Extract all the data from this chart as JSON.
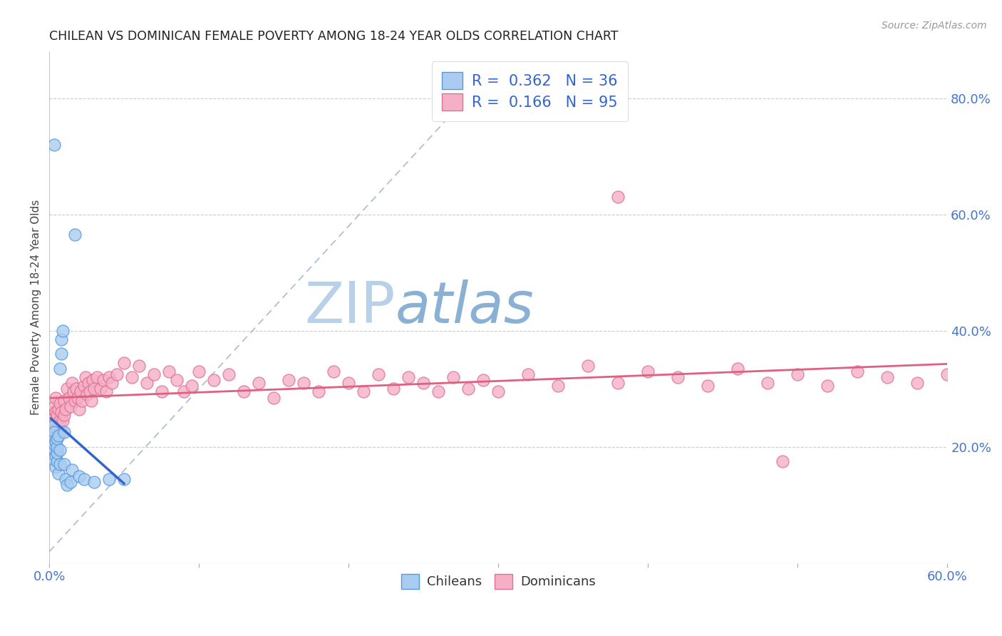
{
  "title": "CHILEAN VS DOMINICAN FEMALE POVERTY AMONG 18-24 YEAR OLDS CORRELATION CHART",
  "source": "Source: ZipAtlas.com",
  "ylabel": "Female Poverty Among 18-24 Year Olds",
  "xlim": [
    0.0,
    0.6
  ],
  "ylim": [
    0.0,
    0.88
  ],
  "xticks": [
    0.0,
    0.1,
    0.2,
    0.3,
    0.4,
    0.5,
    0.6
  ],
  "xticklabels": [
    "0.0%",
    "",
    "",
    "",
    "",
    "",
    "60.0%"
  ],
  "right_yticks": [
    0.2,
    0.4,
    0.6,
    0.8
  ],
  "right_yticklabels": [
    "20.0%",
    "40.0%",
    "60.0%",
    "80.0%"
  ],
  "chile_R": 0.362,
  "chile_N": 36,
  "dom_R": 0.166,
  "dom_N": 95,
  "chile_color": "#aaccf0",
  "chile_edge_color": "#5599dd",
  "dom_color": "#f5b0c8",
  "dom_edge_color": "#e07090",
  "ref_line_color": "#aabbd0",
  "watermark_color": "#ccddef",
  "watermark_zip_color": "#aac8e8",
  "watermark_atlas_color": "#88aad4",
  "chile_x": [
    0.001,
    0.001,
    0.002,
    0.002,
    0.002,
    0.003,
    0.003,
    0.003,
    0.004,
    0.004,
    0.004,
    0.005,
    0.005,
    0.005,
    0.005,
    0.006,
    0.006,
    0.007,
    0.007,
    0.007,
    0.008,
    0.008,
    0.009,
    0.01,
    0.01,
    0.011,
    0.012,
    0.014,
    0.015,
    0.017,
    0.02,
    0.023,
    0.03,
    0.04,
    0.003,
    0.05
  ],
  "chile_y": [
    0.2,
    0.215,
    0.18,
    0.22,
    0.235,
    0.195,
    0.205,
    0.225,
    0.165,
    0.185,
    0.21,
    0.175,
    0.19,
    0.2,
    0.215,
    0.155,
    0.22,
    0.17,
    0.195,
    0.335,
    0.36,
    0.385,
    0.4,
    0.17,
    0.225,
    0.145,
    0.135,
    0.14,
    0.16,
    0.565,
    0.15,
    0.145,
    0.14,
    0.145,
    0.72,
    0.145
  ],
  "dom_x": [
    0.001,
    0.001,
    0.002,
    0.002,
    0.003,
    0.003,
    0.004,
    0.004,
    0.004,
    0.005,
    0.005,
    0.006,
    0.006,
    0.007,
    0.007,
    0.008,
    0.008,
    0.009,
    0.01,
    0.01,
    0.011,
    0.012,
    0.013,
    0.014,
    0.015,
    0.016,
    0.017,
    0.018,
    0.019,
    0.02,
    0.021,
    0.022,
    0.023,
    0.024,
    0.025,
    0.026,
    0.027,
    0.028,
    0.029,
    0.03,
    0.032,
    0.034,
    0.036,
    0.038,
    0.04,
    0.042,
    0.045,
    0.05,
    0.055,
    0.06,
    0.065,
    0.07,
    0.075,
    0.08,
    0.085,
    0.09,
    0.095,
    0.1,
    0.11,
    0.12,
    0.13,
    0.14,
    0.15,
    0.16,
    0.17,
    0.18,
    0.19,
    0.2,
    0.21,
    0.22,
    0.23,
    0.24,
    0.25,
    0.26,
    0.27,
    0.28,
    0.29,
    0.3,
    0.32,
    0.34,
    0.36,
    0.38,
    0.4,
    0.42,
    0.44,
    0.46,
    0.48,
    0.5,
    0.52,
    0.54,
    0.56,
    0.58,
    0.6,
    0.49,
    0.38
  ],
  "dom_y": [
    0.23,
    0.24,
    0.21,
    0.26,
    0.25,
    0.27,
    0.24,
    0.26,
    0.285,
    0.22,
    0.255,
    0.235,
    0.265,
    0.245,
    0.275,
    0.225,
    0.26,
    0.245,
    0.255,
    0.28,
    0.265,
    0.3,
    0.285,
    0.27,
    0.31,
    0.295,
    0.28,
    0.3,
    0.285,
    0.265,
    0.295,
    0.28,
    0.305,
    0.32,
    0.29,
    0.31,
    0.295,
    0.28,
    0.315,
    0.3,
    0.32,
    0.3,
    0.315,
    0.295,
    0.32,
    0.31,
    0.325,
    0.345,
    0.32,
    0.34,
    0.31,
    0.325,
    0.295,
    0.33,
    0.315,
    0.295,
    0.305,
    0.33,
    0.315,
    0.325,
    0.295,
    0.31,
    0.285,
    0.315,
    0.31,
    0.295,
    0.33,
    0.31,
    0.295,
    0.325,
    0.3,
    0.32,
    0.31,
    0.295,
    0.32,
    0.3,
    0.315,
    0.295,
    0.325,
    0.305,
    0.34,
    0.31,
    0.33,
    0.32,
    0.305,
    0.335,
    0.31,
    0.325,
    0.305,
    0.33,
    0.32,
    0.31,
    0.325,
    0.175,
    0.63
  ]
}
